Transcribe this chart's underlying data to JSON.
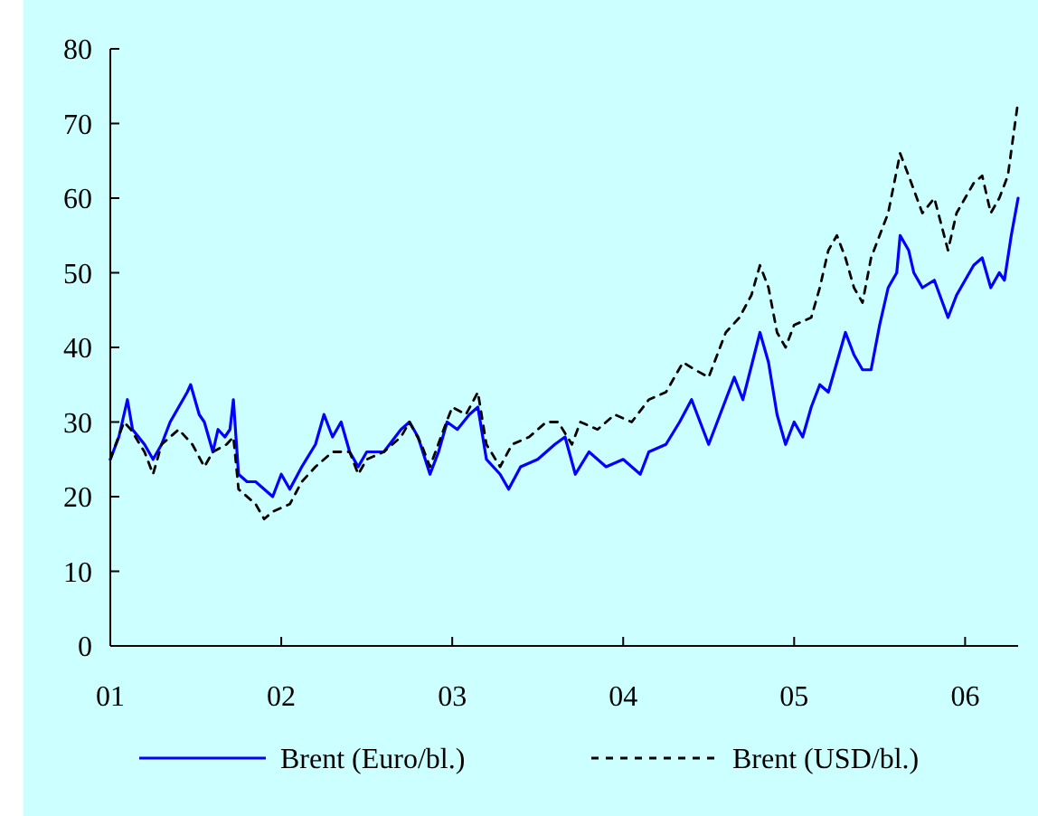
{
  "chart_data": {
    "type": "line",
    "xlim": [
      2001,
      2006.31
    ],
    "xticks": [
      {
        "value": 2001,
        "label": "01"
      },
      {
        "value": 2002,
        "label": "02"
      },
      {
        "value": 2003,
        "label": "03"
      },
      {
        "value": 2004,
        "label": "04"
      },
      {
        "value": 2005,
        "label": "05"
      },
      {
        "value": 2006,
        "label": "06"
      }
    ],
    "ylim": [
      0,
      80
    ],
    "yticks": [
      0,
      10,
      20,
      30,
      40,
      50,
      60,
      70,
      80
    ],
    "grid": false,
    "legend": "bottom",
    "series": [
      {
        "name": "Brent (Euro/bl.)",
        "color": "#0000ff",
        "line_style": "solid",
        "x": [
          2001,
          2001.05,
          2001.08,
          2001.1,
          2001.13,
          2001.2,
          2001.25,
          2001.3,
          2001.35,
          2001.4,
          2001.45,
          2001.47,
          2001.52,
          2001.55,
          2001.6,
          2001.63,
          2001.67,
          2001.7,
          2001.72,
          2001.75,
          2001.8,
          2001.85,
          2001.9,
          2001.95,
          2002,
          2002.05,
          2002.12,
          2002.2,
          2002.25,
          2002.3,
          2002.35,
          2002.4,
          2002.45,
          2002.5,
          2002.6,
          2002.7,
          2002.75,
          2002.8,
          2002.87,
          2002.92,
          2002.97,
          2003.03,
          2003.1,
          2003.15,
          2003.2,
          2003.28,
          2003.33,
          2003.4,
          2003.5,
          2003.6,
          2003.66,
          2003.72,
          2003.8,
          2003.9,
          2004,
          2004.1,
          2004.15,
          2004.25,
          2004.33,
          2004.4,
          2004.45,
          2004.5,
          2004.6,
          2004.65,
          2004.7,
          2004.8,
          2004.85,
          2004.9,
          2004.95,
          2005,
          2005.05,
          2005.1,
          2005.15,
          2005.2,
          2005.3,
          2005.35,
          2005.4,
          2005.45,
          2005.5,
          2005.55,
          2005.6,
          2005.62,
          2005.67,
          2005.7,
          2005.75,
          2005.82,
          2005.9,
          2005.95,
          2006,
          2006.05,
          2006.1,
          2006.15,
          2006.2,
          2006.23,
          2006.27,
          2006.31
        ],
        "values": [
          25,
          28,
          31,
          33,
          29,
          27,
          25,
          27,
          30,
          32,
          34,
          35,
          31,
          30,
          26,
          29,
          28,
          29,
          33,
          23,
          22,
          22,
          21,
          20,
          23,
          21,
          24,
          27,
          31,
          28,
          30,
          26,
          24,
          26,
          26,
          29,
          30,
          28,
          23,
          26,
          30,
          29,
          31,
          32,
          25,
          23,
          21,
          24,
          25,
          27,
          28,
          23,
          26,
          24,
          25,
          23,
          26,
          27,
          30,
          33,
          30,
          27,
          33,
          36,
          33,
          42,
          38,
          31,
          27,
          30,
          28,
          32,
          35,
          34,
          42,
          39,
          37,
          37,
          43,
          48,
          50,
          55,
          53,
          50,
          48,
          49,
          44,
          47,
          49,
          51,
          52,
          48,
          50,
          49,
          55,
          60
        ]
      },
      {
        "name": "Brent (USD/bl.)",
        "color": "#000000",
        "line_style": "dashed",
        "x": [
          2001,
          2001.08,
          2001.12,
          2001.2,
          2001.25,
          2001.3,
          2001.4,
          2001.48,
          2001.55,
          2001.6,
          2001.68,
          2001.72,
          2001.75,
          2001.85,
          2001.9,
          2001.95,
          2002.05,
          2002.12,
          2002.2,
          2002.3,
          2002.4,
          2002.45,
          2002.5,
          2002.6,
          2002.7,
          2002.75,
          2002.82,
          2002.87,
          2002.95,
          2003,
          2003.08,
          2003.15,
          2003.2,
          2003.28,
          2003.35,
          2003.45,
          2003.55,
          2003.62,
          2003.7,
          2003.75,
          2003.85,
          2003.95,
          2004.05,
          2004.15,
          2004.25,
          2004.35,
          2004.42,
          2004.5,
          2004.6,
          2004.68,
          2004.75,
          2004.8,
          2004.85,
          2004.9,
          2004.95,
          2005,
          2005.1,
          2005.15,
          2005.2,
          2005.25,
          2005.3,
          2005.35,
          2005.4,
          2005.45,
          2005.55,
          2005.62,
          2005.67,
          2005.75,
          2005.82,
          2005.9,
          2005.95,
          2006.05,
          2006.1,
          2006.15,
          2006.2,
          2006.25,
          2006.31
        ],
        "values": [
          25,
          30,
          29,
          26,
          23,
          27,
          29,
          27,
          24,
          26,
          27,
          28,
          21,
          19,
          17,
          18,
          19,
          22,
          24,
          26,
          26,
          23,
          25,
          26,
          28,
          30,
          27,
          24,
          29,
          32,
          31,
          34,
          27,
          24,
          27,
          28,
          30,
          30,
          27,
          30,
          29,
          31,
          30,
          33,
          34,
          38,
          37,
          36,
          42,
          44,
          47,
          51,
          48,
          42,
          40,
          43,
          44,
          48,
          53,
          55,
          52,
          48,
          46,
          52,
          58,
          66,
          63,
          58,
          60,
          53,
          58,
          62,
          63,
          58,
          60,
          63,
          73
        ]
      }
    ]
  }
}
